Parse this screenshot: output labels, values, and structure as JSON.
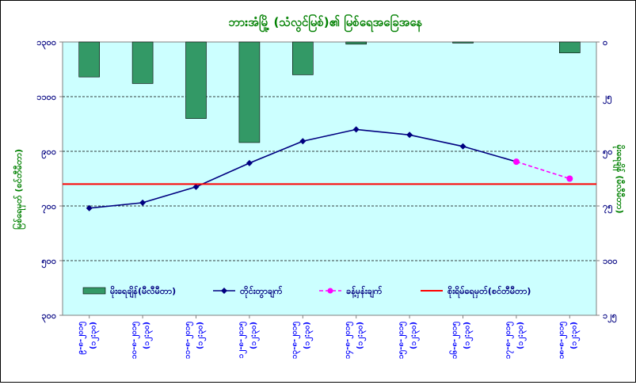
{
  "chart_data": {
    "type": "bar+line",
    "title": "ဘားအံမြို့ (သံလွင်မြစ်)၏ မြစ်ရေအခြေအနေ",
    "ylabel_left": "မြစ်ရေမှတ် (စင်တီမီတာ)",
    "ylabel_right": "မိုးရေချိန် (မီလီမီတာ)",
    "left_axis": {
      "ticks": [
        "၁၃၀၀",
        "၁၁၀၀",
        "၉၀၀",
        "၇၀၀",
        "၅၀၀",
        "၃၀၀"
      ],
      "range": [
        300,
        1300
      ]
    },
    "right_axis": {
      "ticks": [
        "၀",
        "၂၅",
        "၅၀",
        "၇၅",
        "၁၀၀",
        "၁၂၅"
      ],
      "range": [
        0,
        125
      ],
      "inverted": true
    },
    "categories": [
      {
        "date": "၉-၈-၂၀၁၅",
        "time": "(၁၂:၃၀)"
      },
      {
        "date": "၁၀-၈-၂၀၁၅",
        "time": "(၁၂:၃၀)"
      },
      {
        "date": "၁၁-၈-၂၀၁၅",
        "time": "(၁၂:၃၀)"
      },
      {
        "date": "၁၂-၈-၂၀၁၅",
        "time": "(၁၂:၃၀)"
      },
      {
        "date": "၁၃-၈-၂၀၁၅",
        "time": "(၁၂:၃၀)"
      },
      {
        "date": "၁၄-၈-၂၀၁၅",
        "time": "(၁၂:၃၀)"
      },
      {
        "date": "၁၅-၈-၂၀၁၅",
        "time": "(၁၂:၃၀)"
      },
      {
        "date": "၁၆-၈-၂၀၁၅",
        "time": "(၁၂:၃၀)"
      },
      {
        "date": "၁၇-၈-၂၀၁၅",
        "time": "(၁၂:၃၀)"
      },
      {
        "date": "၁၈-၈-၂၀၁၅",
        "time": "(၁၂:၃၀)"
      }
    ],
    "series": [
      {
        "name": "မိုးရေချိန်(မီလီမီတာ)",
        "type": "bar",
        "axis": "right",
        "color": "#339966",
        "values": [
          16,
          19,
          35,
          46,
          15,
          1,
          null,
          0.5,
          null,
          5
        ]
      },
      {
        "name": "တိုင်းတွာချက်",
        "type": "line",
        "axis": "left",
        "color": "#000080",
        "values": [
          692,
          712,
          770,
          857,
          937,
          980,
          960,
          918,
          862,
          null
        ]
      },
      {
        "name": "ခန့်မှန်းချက်",
        "type": "line-dashed",
        "axis": "left",
        "color": "#ff00ff",
        "values": [
          null,
          null,
          null,
          null,
          null,
          null,
          null,
          null,
          862,
          800
        ]
      },
      {
        "name": "စိုးရိမ်ရေမှတ်(စင်တီမီတာ)",
        "type": "hline",
        "axis": "left",
        "color": "#ff0000",
        "value": 780
      }
    ],
    "grid": true,
    "legend": "bottom"
  }
}
